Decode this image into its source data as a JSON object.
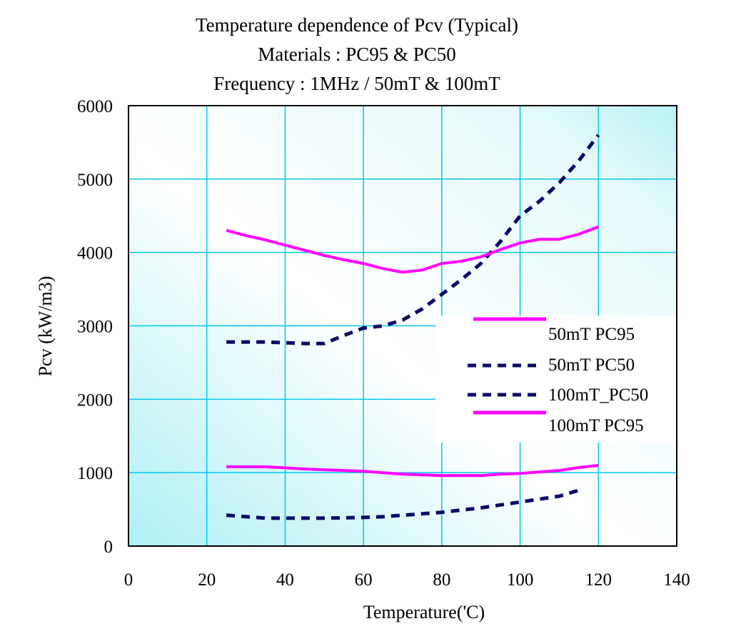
{
  "chart_data": {
    "type": "line",
    "title": "Temperature dependence of Pcv (Typical)",
    "subtitle_lines": [
      "Materials : PC95 & PC50",
      "Frequency : 1MHz  / 50mT & 100mT"
    ],
    "xlabel": "Temperature('C)",
    "ylabel": "Pcv (kW/m3)",
    "xlim": [
      0,
      140
    ],
    "ylim": [
      0,
      6000
    ],
    "xticks": [
      0,
      20,
      40,
      60,
      80,
      100,
      120,
      140
    ],
    "yticks": [
      0,
      1000,
      2000,
      3000,
      4000,
      5000,
      6000
    ],
    "grid": true,
    "legend_position": "right",
    "series": [
      {
        "name": "50mT PC95",
        "color": "#ff00ff",
        "style": "solid",
        "x": [
          25,
          35,
          45,
          50,
          60,
          65,
          70,
          75,
          80,
          90,
          95,
          100,
          105,
          110,
          115,
          120
        ],
        "y": [
          1080,
          1080,
          1050,
          1040,
          1020,
          1000,
          980,
          970,
          960,
          960,
          980,
          990,
          1010,
          1030,
          1070,
          1100
        ]
      },
      {
        "name": "50mT PC50",
        "color": "#0a0a66",
        "style": "dashed",
        "x": [
          25,
          35,
          45,
          50,
          60,
          65,
          70,
          75,
          80,
          85,
          90,
          95,
          100,
          105,
          110,
          115
        ],
        "y": [
          420,
          380,
          380,
          380,
          390,
          400,
          420,
          440,
          460,
          490,
          520,
          560,
          600,
          640,
          680,
          760
        ]
      },
      {
        "name": "100mT_PC50",
        "color": "#0a0a66",
        "style": "dashed",
        "x": [
          25,
          35,
          45,
          50,
          55,
          60,
          65,
          70,
          75,
          80,
          85,
          90,
          95,
          100,
          105,
          110,
          115,
          120
        ],
        "y": [
          2780,
          2780,
          2760,
          2760,
          2870,
          2970,
          3000,
          3080,
          3230,
          3430,
          3630,
          3850,
          4150,
          4500,
          4700,
          4950,
          5250,
          5600
        ]
      },
      {
        "name": "100mT PC95",
        "color": "#ff00ff",
        "style": "solid",
        "x": [
          25,
          30,
          35,
          40,
          45,
          50,
          55,
          60,
          65,
          70,
          75,
          80,
          85,
          90,
          95,
          100,
          105,
          110,
          115,
          120
        ],
        "y": [
          4300,
          4230,
          4170,
          4100,
          4030,
          3960,
          3900,
          3850,
          3780,
          3730,
          3760,
          3850,
          3880,
          3940,
          4040,
          4130,
          4180,
          4180,
          4250,
          4350
        ]
      }
    ]
  }
}
